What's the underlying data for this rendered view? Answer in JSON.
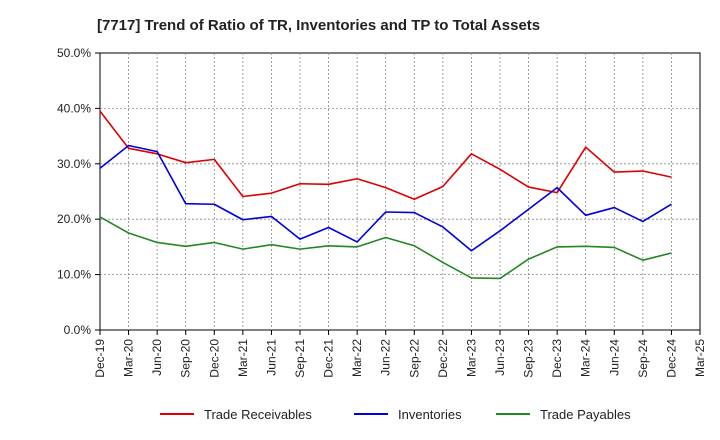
{
  "chart_data": {
    "type": "line",
    "title": "[7717]  Trend of Ratio of TR, Inventories and TP to Total Assets",
    "xlabel": "",
    "ylabel": "",
    "ylim": [
      0,
      50
    ],
    "yticks": [
      "0.0%",
      "10.0%",
      "20.0%",
      "30.0%",
      "40.0%",
      "50.0%"
    ],
    "categories": [
      "Dec-19",
      "Mar-20",
      "Jun-20",
      "Sep-20",
      "Dec-20",
      "Mar-21",
      "Jun-21",
      "Sep-21",
      "Dec-21",
      "Mar-22",
      "Jun-22",
      "Sep-22",
      "Dec-22",
      "Mar-23",
      "Jun-23",
      "Sep-23",
      "Dec-23",
      "Mar-24",
      "Jun-24",
      "Sep-24",
      "Dec-24",
      "Mar-25"
    ],
    "grid": true,
    "legend_position": "bottom",
    "series": [
      {
        "name": "Trade Receivables",
        "color": "#dd0000",
        "values": [
          39.5,
          32.8,
          31.8,
          30.2,
          30.8,
          24.1,
          24.7,
          26.4,
          26.3,
          27.3,
          25.7,
          23.6,
          25.9,
          31.8,
          29.0,
          25.8,
          24.8,
          33.0,
          28.5,
          28.7,
          27.6,
          null
        ]
      },
      {
        "name": "Inventories",
        "color": "#0000dd",
        "values": [
          29.2,
          33.3,
          32.2,
          22.8,
          22.7,
          19.9,
          20.5,
          16.4,
          18.5,
          15.9,
          21.3,
          21.2,
          18.6,
          14.3,
          17.9,
          21.8,
          25.7,
          20.7,
          22.1,
          19.6,
          22.7,
          null
        ]
      },
      {
        "name": "Trade Payables",
        "color": "#228822",
        "values": [
          20.4,
          17.5,
          15.8,
          15.1,
          15.8,
          14.6,
          15.4,
          14.6,
          15.2,
          15.0,
          16.7,
          15.2,
          12.2,
          9.4,
          9.3,
          12.8,
          15.0,
          15.1,
          14.9,
          12.6,
          13.9,
          null
        ]
      }
    ]
  }
}
